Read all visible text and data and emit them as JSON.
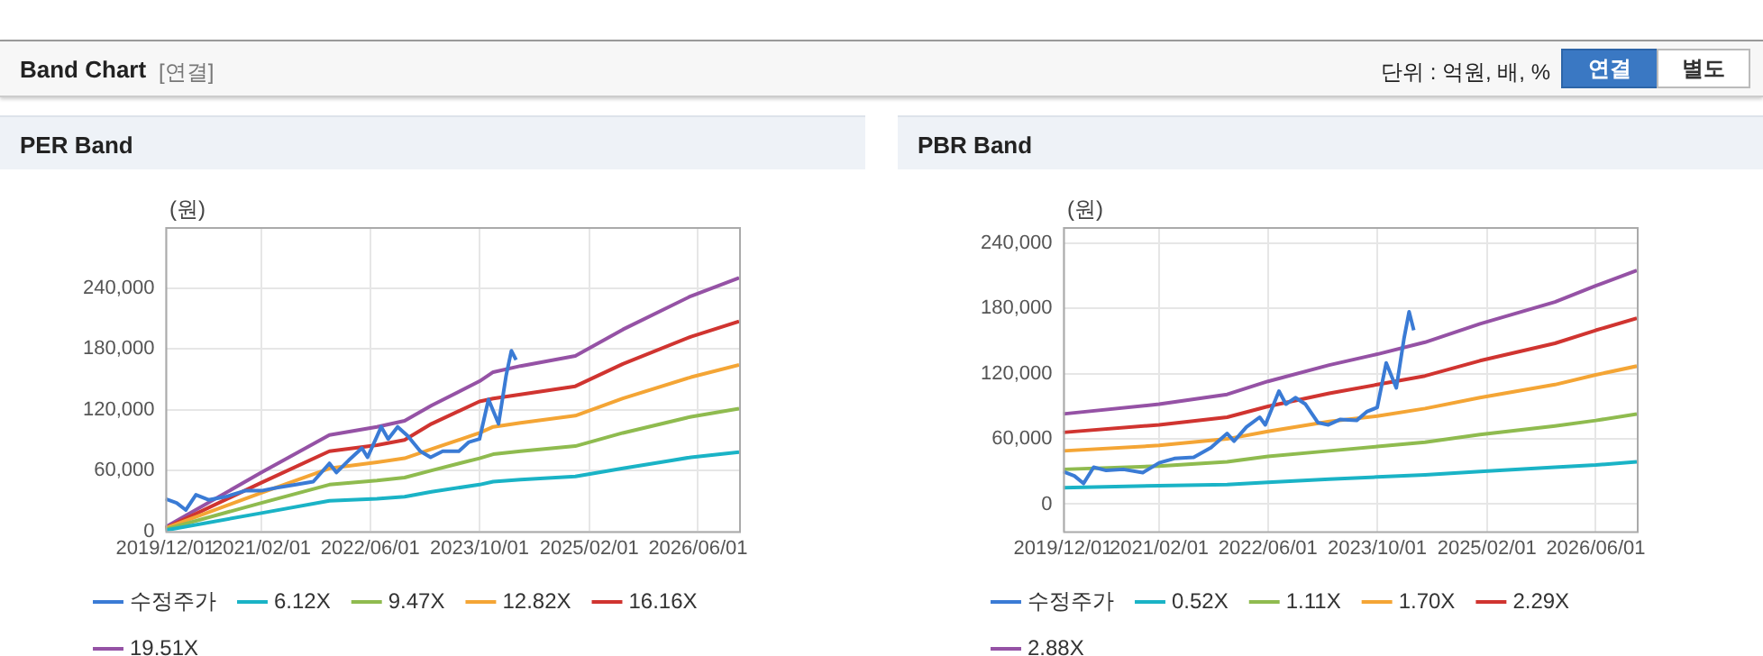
{
  "chart_data": [
    {
      "type": "other",
      "title": "Band Chart",
      "annotations": [
        "[연결]",
        "단위 : 억원, 배, %",
        "연결",
        "별도"
      ]
    },
    {
      "type": "line",
      "title": "PER Band",
      "ylabel": "(원)",
      "xlim": [
        "2019-12-01",
        "2026-12-01"
      ],
      "ylim": [
        0,
        300000
      ],
      "xticks": [
        {
          "value": "2019-12-01",
          "label": "2019/12/01"
        },
        {
          "value": "2021-02-01",
          "label": "2021/02/01"
        },
        {
          "value": "2022-06-01",
          "label": "2022/06/01"
        },
        {
          "value": "2023-10-01",
          "label": "2023/10/01"
        },
        {
          "value": "2025-02-01",
          "label": "2025/02/01"
        },
        {
          "value": "2026-06-01",
          "label": "2026/06/01"
        }
      ],
      "yticks": [
        {
          "value": 0,
          "label": "0"
        },
        {
          "value": 60000,
          "label": "60,000"
        },
        {
          "value": 120000,
          "label": "120,000"
        },
        {
          "value": 180000,
          "label": "180,000"
        },
        {
          "value": 240000,
          "label": "240,000"
        }
      ],
      "grid": true,
      "legend": "bottom",
      "marker": "none",
      "line_style": "solid",
      "series": [
        {
          "name": "수정주가",
          "color": "#3a7bd5",
          "x": [
            "2019-12-01",
            "2020-01-20",
            "2020-03-01",
            "2020-04-15",
            "2020-06-10",
            "2020-08-25",
            "2020-11-20",
            "2021-02-01",
            "2021-04-10",
            "2021-07-05",
            "2021-09-20",
            "2021-12-01",
            "2022-01-01",
            "2022-02-25",
            "2022-04-25",
            "2022-05-20",
            "2022-07-20",
            "2022-08-20",
            "2022-10-01",
            "2022-11-15",
            "2023-01-10",
            "2023-02-25",
            "2023-04-20",
            "2023-07-01",
            "2023-08-15",
            "2023-10-01",
            "2023-11-10",
            "2023-12-25",
            "2024-01-28",
            "2024-02-20",
            "2024-03-12"
          ],
          "values": [
            32000,
            28000,
            21000,
            36000,
            31000,
            34000,
            40000,
            40000,
            43000,
            46000,
            49000,
            67000,
            58000,
            70000,
            82000,
            73000,
            103000,
            91000,
            103000,
            94000,
            79000,
            73000,
            79000,
            79000,
            88000,
            91000,
            130000,
            106000,
            154000,
            178000,
            169000
          ]
        },
        {
          "name": "6.12X",
          "color": "#1ab3c6",
          "x": [
            "2019-12-01",
            "2021-02-01",
            "2021-12-01",
            "2022-07-01",
            "2022-11-01",
            "2023-03-01",
            "2023-10-01",
            "2023-12-01",
            "2024-04-01",
            "2024-12-01",
            "2025-07-01",
            "2026-05-01",
            "2026-12-01"
          ],
          "values": [
            1000,
            18000,
            30000,
            32000,
            34000,
            39000,
            46000,
            49000,
            51000,
            54000,
            62000,
            73000,
            78000
          ]
        },
        {
          "name": "9.47X",
          "color": "#8fbb4f",
          "x": [
            "2019-12-01",
            "2021-02-01",
            "2021-12-01",
            "2022-07-01",
            "2022-11-01",
            "2023-03-01",
            "2023-10-01",
            "2023-12-01",
            "2024-04-01",
            "2024-12-01",
            "2025-07-01",
            "2026-05-01",
            "2026-12-01"
          ],
          "values": [
            2000,
            28000,
            46000,
            50000,
            53000,
            60000,
            72000,
            76000,
            79000,
            84000,
            97000,
            113000,
            121000
          ]
        },
        {
          "name": "12.82X",
          "color": "#f4a535",
          "x": [
            "2019-12-01",
            "2021-02-01",
            "2021-12-01",
            "2022-07-01",
            "2022-11-01",
            "2023-03-01",
            "2023-10-01",
            "2023-12-01",
            "2024-04-01",
            "2024-12-01",
            "2025-07-01",
            "2026-05-01",
            "2026-12-01"
          ],
          "values": [
            3000,
            38000,
            62000,
            68000,
            72000,
            81000,
            97000,
            103000,
            107000,
            114000,
            131000,
            152000,
            164000
          ]
        },
        {
          "name": "16.16X",
          "color": "#d03430",
          "x": [
            "2019-12-01",
            "2021-02-01",
            "2021-12-01",
            "2022-07-01",
            "2022-11-01",
            "2023-03-01",
            "2023-10-01",
            "2023-12-01",
            "2024-04-01",
            "2024-12-01",
            "2025-07-01",
            "2026-05-01",
            "2026-12-01"
          ],
          "values": [
            3000,
            48000,
            79000,
            85000,
            90000,
            106000,
            128000,
            131000,
            135000,
            143000,
            165000,
            192000,
            207000
          ]
        },
        {
          "name": "19.51X",
          "color": "#9552a5",
          "x": [
            "2019-12-01",
            "2021-02-01",
            "2021-12-01",
            "2022-07-01",
            "2022-11-01",
            "2023-03-01",
            "2023-10-01",
            "2023-12-01",
            "2024-04-01",
            "2024-12-01",
            "2025-07-01",
            "2026-05-01",
            "2026-12-01"
          ],
          "values": [
            4000,
            58000,
            95000,
            103000,
            109000,
            124000,
            148000,
            157000,
            163000,
            173000,
            199000,
            232000,
            250000
          ]
        }
      ]
    },
    {
      "type": "line",
      "title": "PBR Band",
      "ylabel": "(원)",
      "xlim": [
        "2019-12-01",
        "2026-12-01"
      ],
      "ylim": [
        -25000,
        255000
      ],
      "xticks": [
        {
          "value": "2019-12-01",
          "label": "2019/12/01"
        },
        {
          "value": "2021-02-01",
          "label": "2021/02/01"
        },
        {
          "value": "2022-06-01",
          "label": "2022/06/01"
        },
        {
          "value": "2023-10-01",
          "label": "2023/10/01"
        },
        {
          "value": "2025-02-01",
          "label": "2025/02/01"
        },
        {
          "value": "2026-06-01",
          "label": "2026/06/01"
        }
      ],
      "yticks": [
        {
          "value": 0,
          "label": "0"
        },
        {
          "value": 60000,
          "label": "60,000"
        },
        {
          "value": 120000,
          "label": "120,000"
        },
        {
          "value": 180000,
          "label": "180,000"
        },
        {
          "value": 240000,
          "label": "240,000"
        }
      ],
      "grid": true,
      "legend": "bottom",
      "marker": "none",
      "line_style": "solid",
      "series": [
        {
          "name": "수정주가",
          "color": "#3a7bd5",
          "x": [
            "2019-12-01",
            "2020-01-20",
            "2020-03-01",
            "2020-04-15",
            "2020-06-10",
            "2020-08-25",
            "2020-11-20",
            "2021-02-01",
            "2021-04-10",
            "2021-07-05",
            "2021-09-20",
            "2021-12-01",
            "2022-01-01",
            "2022-02-25",
            "2022-04-25",
            "2022-05-20",
            "2022-07-20",
            "2022-08-20",
            "2022-10-01",
            "2022-11-15",
            "2023-01-10",
            "2023-02-25",
            "2023-04-20",
            "2023-07-01",
            "2023-08-15",
            "2023-10-01",
            "2023-11-10",
            "2023-12-25",
            "2024-01-28",
            "2024-02-20",
            "2024-03-12"
          ],
          "values": [
            30000,
            26000,
            19000,
            34000,
            31000,
            32000,
            29000,
            38000,
            42000,
            43000,
            52000,
            65000,
            58000,
            71000,
            80000,
            73000,
            104000,
            92000,
            98000,
            92000,
            75000,
            73000,
            78000,
            77000,
            85000,
            89000,
            130000,
            107000,
            152000,
            177000,
            160000
          ]
        },
        {
          "name": "0.52X",
          "color": "#1ab3c6",
          "x": [
            "2019-12-01",
            "2021-02-01",
            "2021-12-01",
            "2022-06-01",
            "2023-03-01",
            "2023-10-01",
            "2024-05-01",
            "2025-01-01",
            "2025-12-01",
            "2026-06-01",
            "2026-12-01"
          ],
          "values": [
            15000,
            17000,
            18000,
            20000,
            23000,
            25000,
            27000,
            30000,
            34000,
            36000,
            39000
          ]
        },
        {
          "name": "1.11X",
          "color": "#8fbb4f",
          "x": [
            "2019-12-01",
            "2021-02-01",
            "2021-12-01",
            "2022-06-01",
            "2023-03-01",
            "2023-10-01",
            "2024-05-01",
            "2025-01-01",
            "2025-12-01",
            "2026-06-01",
            "2026-12-01"
          ],
          "values": [
            32000,
            35000,
            39000,
            44000,
            49000,
            53000,
            57000,
            64000,
            72000,
            77000,
            83000
          ]
        },
        {
          "name": "1.70X",
          "color": "#f4a535",
          "x": [
            "2019-12-01",
            "2021-02-01",
            "2021-12-01",
            "2022-06-01",
            "2023-03-01",
            "2023-10-01",
            "2024-05-01",
            "2025-01-01",
            "2025-12-01",
            "2026-06-01",
            "2026-12-01"
          ],
          "values": [
            49000,
            54000,
            60000,
            67000,
            76000,
            81000,
            88000,
            98000,
            110000,
            119000,
            127000
          ]
        },
        {
          "name": "2.29X",
          "color": "#d03430",
          "x": [
            "2019-12-01",
            "2021-02-01",
            "2021-12-01",
            "2022-06-01",
            "2023-03-01",
            "2023-10-01",
            "2024-05-01",
            "2025-01-01",
            "2025-12-01",
            "2026-06-01",
            "2026-12-01"
          ],
          "values": [
            66000,
            73000,
            80000,
            90000,
            102000,
            110000,
            118000,
            132000,
            148000,
            160000,
            171000
          ]
        },
        {
          "name": "2.88X",
          "color": "#9552a5",
          "x": [
            "2019-12-01",
            "2021-02-01",
            "2021-12-01",
            "2022-06-01",
            "2023-03-01",
            "2023-10-01",
            "2024-05-01",
            "2025-01-01",
            "2025-12-01",
            "2026-06-01",
            "2026-12-01"
          ],
          "values": [
            83000,
            92000,
            101000,
            113000,
            128000,
            138000,
            149000,
            166000,
            186000,
            201000,
            215000
          ]
        }
      ]
    }
  ]
}
